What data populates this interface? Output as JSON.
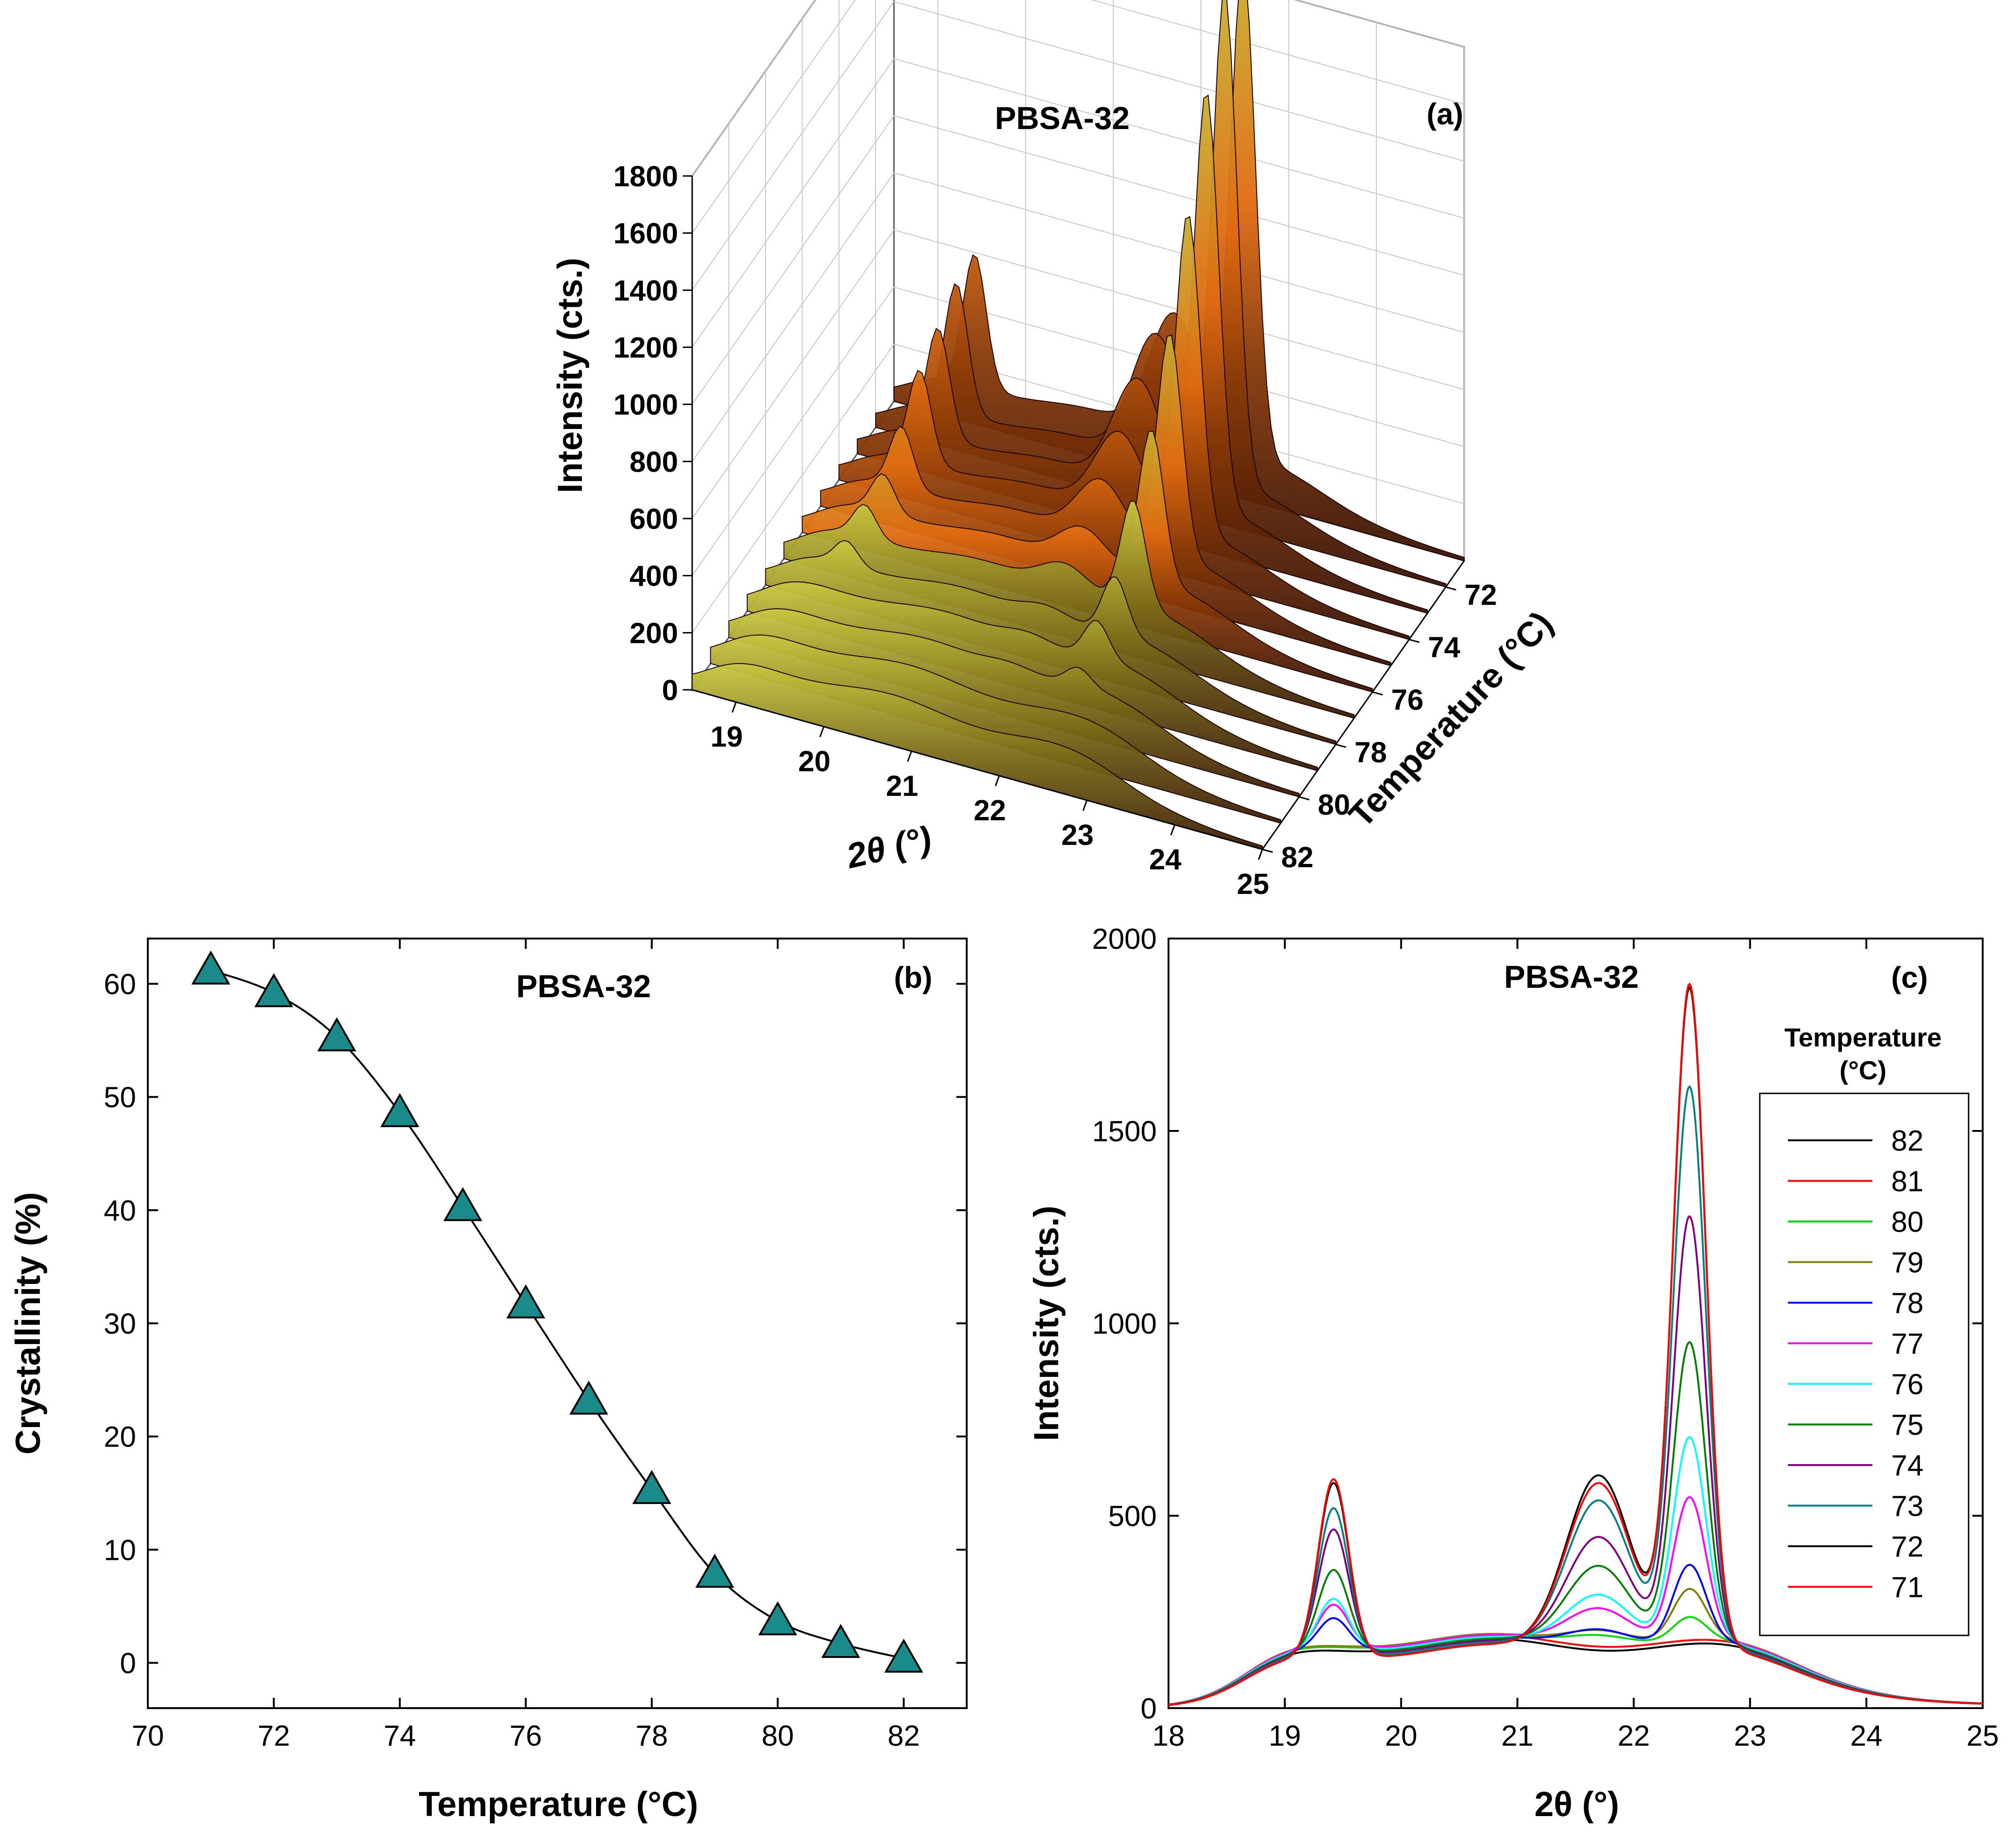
{
  "chart_data": [
    {
      "panel": "(a)",
      "type": "surface3d",
      "title": "PBSA-32",
      "zlabel": "Intensity (cts.)",
      "xlabel": "2θ (°)",
      "ylabel": "Temperature (°C)",
      "z_ticks": [
        "0",
        "200",
        "400",
        "600",
        "800",
        "1000",
        "1200",
        "1400",
        "1600",
        "1800"
      ],
      "x_ticks": [
        "19",
        "20",
        "21",
        "22",
        "23",
        "24",
        "25"
      ],
      "y_ticks": [
        "72",
        "74",
        "76",
        "78",
        "80",
        "82"
      ],
      "zlim": [
        0,
        1800
      ],
      "xlim": [
        18.5,
        25
      ],
      "ylim": [
        71,
        82
      ]
    },
    {
      "panel": "(b)",
      "type": "scatter",
      "title": "PBSA-32",
      "xlabel": "Temperature (°C)",
      "ylabel": "Crystallinity (%)",
      "x": [
        71,
        72,
        73,
        74,
        75,
        76,
        77,
        78,
        79,
        80,
        81,
        82
      ],
      "values": [
        61.2,
        59.2,
        55.3,
        48.6,
        40.3,
        31.7,
        23.2,
        15.3,
        7.9,
        3.7,
        1.7,
        0.4
      ],
      "xlim": [
        70,
        83
      ],
      "ylim": [
        -4,
        64
      ],
      "x_ticks": [
        "70",
        "72",
        "74",
        "76",
        "78",
        "80",
        "82"
      ],
      "y_ticks": [
        "0",
        "10",
        "20",
        "30",
        "40",
        "50",
        "60"
      ],
      "marker_color": "#1a8a8a"
    },
    {
      "panel": "(c)",
      "type": "line",
      "title": "PBSA-32",
      "xlabel": "2θ (°)",
      "ylabel": "Intensity (cts.)",
      "xlim": [
        18,
        25
      ],
      "ylim": [
        0,
        2000
      ],
      "x_ticks": [
        "18",
        "19",
        "20",
        "21",
        "22",
        "23",
        "24",
        "25"
      ],
      "y_ticks": [
        "0",
        "500",
        "1000",
        "1500",
        "2000"
      ],
      "legend_title": "Temperature\n(°C)",
      "legend_title_lines": [
        "Temperature",
        "(°C)"
      ],
      "legend_position": "right",
      "series": [
        {
          "name": "82",
          "color": "#000000",
          "p1": 0,
          "shoulder": 0,
          "p2": 0,
          "amorph": 165
        },
        {
          "name": "81",
          "color": "#ff0000",
          "p1": 0,
          "shoulder": 0,
          "p2": 0,
          "amorph": 175
        },
        {
          "name": "80",
          "color": "#00dd00",
          "p1": 0,
          "shoulder": 30,
          "p2": 60,
          "amorph": 175
        },
        {
          "name": "79",
          "color": "#808000",
          "p1": 0,
          "shoulder": 40,
          "p2": 130,
          "amorph": 178
        },
        {
          "name": "78",
          "color": "#0000ff",
          "p1": 80,
          "shoulder": 50,
          "p2": 200,
          "amorph": 170
        },
        {
          "name": "77",
          "color": "#ff00ff",
          "p1": 110,
          "shoulder": 100,
          "p2": 370,
          "amorph": 175
        },
        {
          "name": "76",
          "color": "#00ffff",
          "p1": 130,
          "shoulder": 140,
          "p2": 530,
          "amorph": 170
        },
        {
          "name": "75",
          "color": "#008000",
          "p1": 210,
          "shoulder": 220,
          "p2": 780,
          "amorph": 165
        },
        {
          "name": "74",
          "color": "#800080",
          "p1": 320,
          "shoulder": 300,
          "p2": 1110,
          "amorph": 160
        },
        {
          "name": "73",
          "color": "#008080",
          "p1": 380,
          "shoulder": 400,
          "p2": 1450,
          "amorph": 155
        },
        {
          "name": "72",
          "color": "#000000",
          "p1": 450,
          "shoulder": 470,
          "p2": 1710,
          "amorph": 150
        },
        {
          "name": "71",
          "color": "#ff0000",
          "p1": 460,
          "shoulder": 450,
          "p2": 1720,
          "amorph": 150
        }
      ]
    }
  ]
}
